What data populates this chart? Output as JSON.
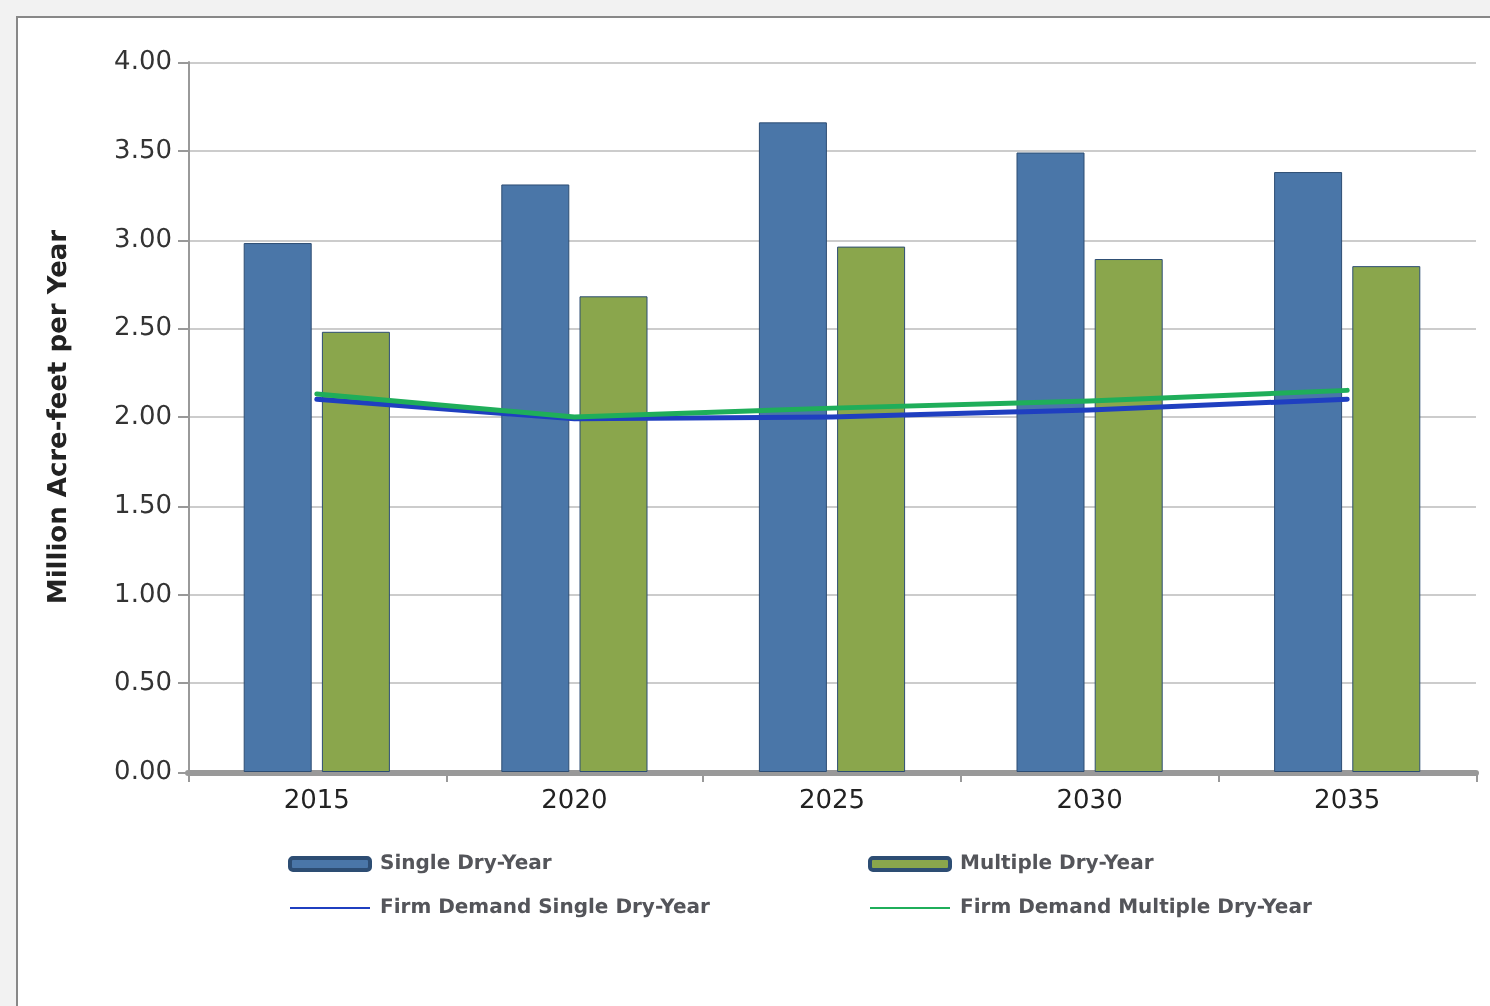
{
  "chart_data": {
    "type": "bar",
    "ylabel": "Million Acre-feet per Year",
    "categories": [
      "2015",
      "2020",
      "2025",
      "2030",
      "2035"
    ],
    "series": [
      {
        "name": "Single Dry-Year",
        "color": "#4a76a8",
        "values": [
          2.98,
          3.31,
          3.66,
          3.49,
          3.38
        ]
      },
      {
        "name": "Multiple Dry-Year",
        "color": "#8aa64c",
        "values": [
          2.48,
          2.68,
          2.96,
          2.89,
          2.85
        ]
      },
      {
        "name": "Firm Demand Single Dry-Year",
        "type": "line",
        "color": "#1f3fc0",
        "values": [
          2.1,
          1.99,
          2.0,
          2.04,
          2.1
        ]
      },
      {
        "name": "Firm Demand Multiple Dry-Year",
        "type": "line",
        "color": "#1fae5a",
        "values": [
          2.13,
          2.0,
          2.05,
          2.09,
          2.15
        ]
      }
    ],
    "ylim": [
      0,
      4
    ],
    "yticks": [
      {
        "value": 0,
        "label": "0.00"
      },
      {
        "value": 0.5,
        "label": "0.50"
      },
      {
        "value": 1,
        "label": "1.00"
      },
      {
        "value": 1.5,
        "label": "1.50"
      },
      {
        "value": 2,
        "label": "2.00"
      },
      {
        "value": 2.5,
        "label": "2.50"
      },
      {
        "value": 3,
        "label": "3.00"
      },
      {
        "value": 3.5,
        "label": "3.50"
      },
      {
        "value": 4,
        "label": "4.00"
      }
    ],
    "grid": "y",
    "legend": "bottom",
    "marker": "none",
    "line_style": "solid"
  }
}
